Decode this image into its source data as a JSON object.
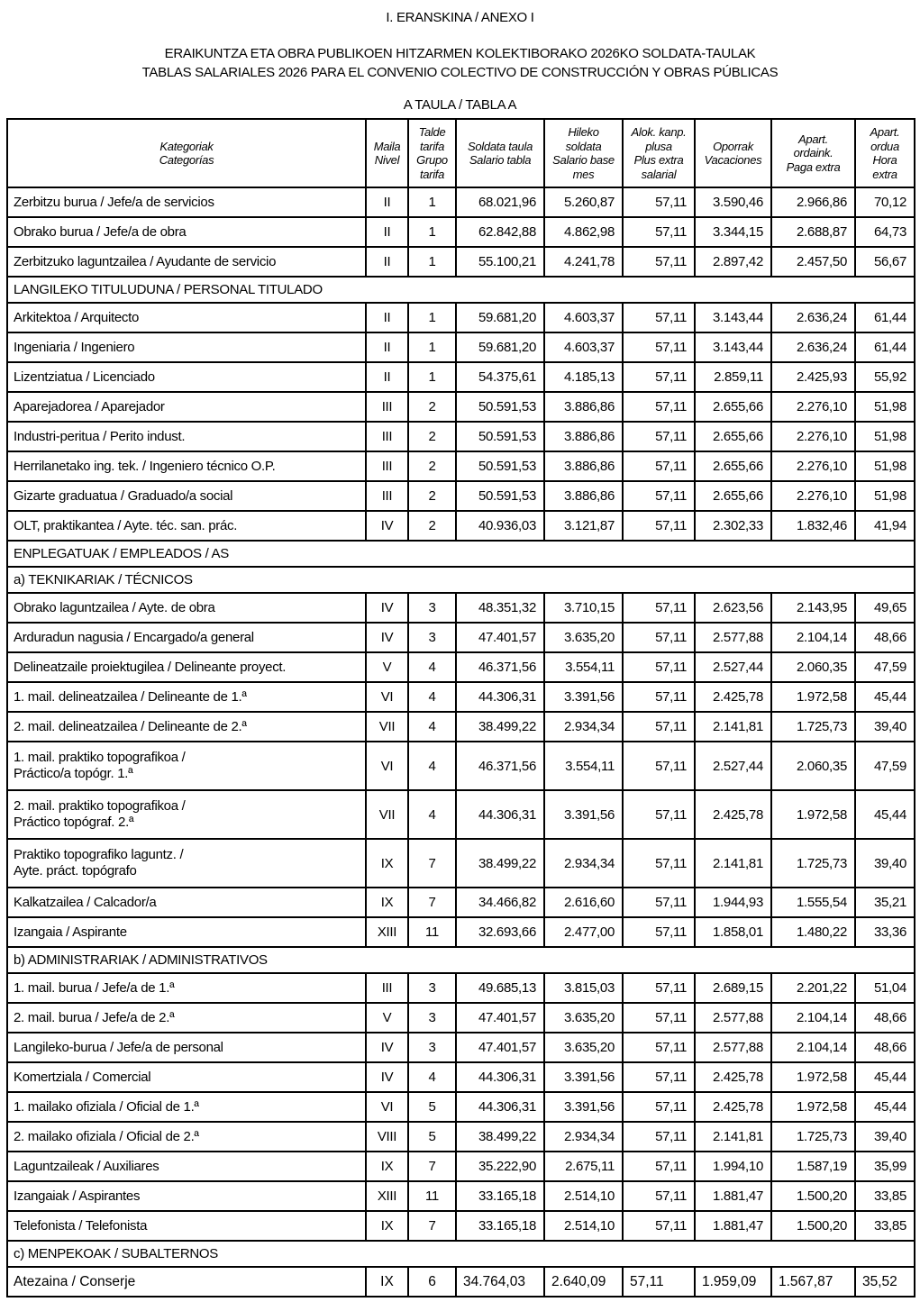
{
  "page": {
    "title": "I. ERANSKINA / ANEXO I",
    "subtitle_line1": "ERAIKUNTZA ETA OBRA PUBLIKOEN HITZARMEN KOLEKTIBORAKO 2026KO SOLDATA-TAULAK",
    "subtitle_line2": "TABLAS SALARIALES 2026 PARA EL CONVENIO COLECTIVO DE CONSTRUCCIÓN Y OBRAS PÚBLICAS",
    "table_caption": "A TAULA / TABLA A",
    "colors": {
      "text": "#000000",
      "border": "#000000",
      "background": "#ffffff"
    }
  },
  "table": {
    "headers": [
      {
        "id": "kategoriak",
        "label": "Kategoriak\nCategorías"
      },
      {
        "id": "maila",
        "label": "Maila\nNivel"
      },
      {
        "id": "talde-tarifa",
        "label": "Talde\ntarifa\nGrupo\ntarifa"
      },
      {
        "id": "soldata-taula",
        "label": "Soldata taula\nSalario tabla"
      },
      {
        "id": "hileko-soldata",
        "label": "Hileko\nsoldata\nSalario base\nmes"
      },
      {
        "id": "alok-kanp-plusa",
        "label": "Alok. kanp.\nplusa\nPlus extra\nsalarial"
      },
      {
        "id": "oporrak",
        "label": "Oporrak\nVacaciones"
      },
      {
        "id": "apart-ordaink",
        "label": "Apart.\nordaink.\nPaga extra"
      },
      {
        "id": "apart-ordua",
        "label": "Apart.\nordua\nHora\nextra"
      }
    ],
    "rows": [
      {
        "type": "data",
        "category": "Zerbitzu burua / Jefe/a de servicios",
        "values": [
          "II",
          "1",
          "68.021,96",
          "5.260,87",
          "57,11",
          "3.590,46",
          "2.966,86",
          "70,12"
        ]
      },
      {
        "type": "data",
        "category": "Obrako burua / Jefe/a de obra",
        "values": [
          "II",
          "1",
          "62.842,88",
          "4.862,98",
          "57,11",
          "3.344,15",
          "2.688,87",
          "64,73"
        ]
      },
      {
        "type": "data",
        "category": "Zerbitzuko laguntzailea / Ayudante de servicio",
        "values": [
          "II",
          "1",
          "55.100,21",
          "4.241,78",
          "57,11",
          "2.897,42",
          "2.457,50",
          "56,67"
        ]
      },
      {
        "type": "section",
        "label": "LANGILEKO TITULUDUNA / PERSONAL TITULADO"
      },
      {
        "type": "data",
        "category": "Arkitektoa / Arquitecto",
        "values": [
          "II",
          "1",
          "59.681,20",
          "4.603,37",
          "57,11",
          "3.143,44",
          "2.636,24",
          "61,44"
        ]
      },
      {
        "type": "data",
        "category": "Ingeniaria / Ingeniero",
        "values": [
          "II",
          "1",
          "59.681,20",
          "4.603,37",
          "57,11",
          "3.143,44",
          "2.636,24",
          "61,44"
        ]
      },
      {
        "type": "data",
        "category": "Lizentziatua / Licenciado",
        "values": [
          "II",
          "1",
          "54.375,61",
          "4.185,13",
          "57,11",
          "2.859,11",
          "2.425,93",
          "55,92"
        ]
      },
      {
        "type": "data",
        "category": "Aparejadorea / Aparejador",
        "values": [
          "III",
          "2",
          "50.591,53",
          "3.886,86",
          "57,11",
          "2.655,66",
          "2.276,10",
          "51,98"
        ]
      },
      {
        "type": "data",
        "category": "Industri-peritua / Perito indust.",
        "values": [
          "III",
          "2",
          "50.591,53",
          "3.886,86",
          "57,11",
          "2.655,66",
          "2.276,10",
          "51,98"
        ]
      },
      {
        "type": "data",
        "category": "Herrilanetako ing. tek. / Ingeniero técnico O.P.",
        "values": [
          "III",
          "2",
          "50.591,53",
          "3.886,86",
          "57,11",
          "2.655,66",
          "2.276,10",
          "51,98"
        ]
      },
      {
        "type": "data",
        "category": "Gizarte graduatua / Graduado/a social",
        "values": [
          "III",
          "2",
          "50.591,53",
          "3.886,86",
          "57,11",
          "2.655,66",
          "2.276,10",
          "51,98"
        ]
      },
      {
        "type": "data",
        "category": "OLT, praktikantea / Ayte. téc. san. prác.",
        "values": [
          "IV",
          "2",
          "40.936,03",
          "3.121,87",
          "57,11",
          "2.302,33",
          "1.832,46",
          "41,94"
        ]
      },
      {
        "type": "section",
        "label": "ENPLEGATUAK / EMPLEADOS / AS"
      },
      {
        "type": "section",
        "label": "a) TEKNIKARIAK / TÉCNICOS"
      },
      {
        "type": "data",
        "category": "Obrako laguntzailea / Ayte. de obra",
        "values": [
          "IV",
          "3",
          "48.351,32",
          "3.710,15",
          "57,11",
          "2.623,56",
          "2.143,95",
          "49,65"
        ]
      },
      {
        "type": "data",
        "category": "Arduradun nagusia / Encargado/a general",
        "values": [
          "IV",
          "3",
          "47.401,57",
          "3.635,20",
          "57,11",
          "2.577,88",
          "2.104,14",
          "48,66"
        ]
      },
      {
        "type": "data",
        "category": "Delineatzaile proiektugilea / Delineante proyect.",
        "values": [
          "V",
          "4",
          "46.371,56",
          "3.554,11",
          "57,11",
          "2.527,44",
          "2.060,35",
          "47,59"
        ]
      },
      {
        "type": "data",
        "category": "1. mail. delineatzailea / Delineante de 1.ª",
        "values": [
          "VI",
          "4",
          "44.306,31",
          "3.391,56",
          "57,11",
          "2.425,78",
          "1.972,58",
          "45,44"
        ]
      },
      {
        "type": "data",
        "category": "2. mail. delineatzailea / Delineante de 2.ª",
        "values": [
          "VII",
          "4",
          "38.499,22",
          "2.934,34",
          "57,11",
          "2.141,81",
          "1.725,73",
          "39,40"
        ]
      },
      {
        "type": "data",
        "category": "1. mail. praktiko topografikoa /\nPráctico/a topógr. 1.ª",
        "values": [
          "VI",
          "4",
          "46.371,56",
          "3.554,11",
          "57,11",
          "2.527,44",
          "2.060,35",
          "47,59"
        ]
      },
      {
        "type": "data",
        "category": "2. mail. praktiko topografikoa /\nPráctico topógraf. 2.ª",
        "values": [
          "VII",
          "4",
          "44.306,31",
          "3.391,56",
          "57,11",
          "2.425,78",
          "1.972,58",
          "45,44"
        ]
      },
      {
        "type": "data",
        "category": "Praktiko topografiko laguntz. /\nAyte. práct. topógrafo",
        "values": [
          "IX",
          "7",
          "38.499,22",
          "2.934,34",
          "57,11",
          "2.141,81",
          "1.725,73",
          "39,40"
        ]
      },
      {
        "type": "data",
        "category": "Kalkatzailea / Calcador/a",
        "values": [
          "IX",
          "7",
          "34.466,82",
          "2.616,60",
          "57,11",
          "1.944,93",
          "1.555,54",
          "35,21"
        ]
      },
      {
        "type": "data",
        "category": "Izangaia / Aspirante",
        "values": [
          "XIII",
          "11",
          "32.693,66",
          "2.477,00",
          "57,11",
          "1.858,01",
          "1.480,22",
          "33,36"
        ]
      },
      {
        "type": "section",
        "label": "b) ADMINISTRARIAK / ADMINISTRATIVOS"
      },
      {
        "type": "data",
        "category": "1. mail. burua / Jefe/a de 1.ª",
        "values": [
          "III",
          "3",
          "49.685,13",
          "3.815,03",
          "57,11",
          "2.689,15",
          "2.201,22",
          "51,04"
        ]
      },
      {
        "type": "data",
        "category": "2. mail. burua / Jefe/a de 2.ª",
        "values": [
          "V",
          "3",
          "47.401,57",
          "3.635,20",
          "57,11",
          "2.577,88",
          "2.104,14",
          "48,66"
        ]
      },
      {
        "type": "data",
        "category": "Langileko-burua / Jefe/a de personal",
        "values": [
          "IV",
          "3",
          "47.401,57",
          "3.635,20",
          "57,11",
          "2.577,88",
          "2.104,14",
          "48,66"
        ]
      },
      {
        "type": "data",
        "category": "Komertziala / Comercial",
        "values": [
          "IV",
          "4",
          "44.306,31",
          "3.391,56",
          "57,11",
          "2.425,78",
          "1.972,58",
          "45,44"
        ]
      },
      {
        "type": "data",
        "category": "1. mailako ofiziala / Oficial de 1.ª",
        "values": [
          "VI",
          "5",
          "44.306,31",
          "3.391,56",
          "57,11",
          "2.425,78",
          "1.972,58",
          "45,44"
        ]
      },
      {
        "type": "data",
        "category": "2. mailako ofiziala / Oficial de 2.ª",
        "values": [
          "VIII",
          "5",
          "38.499,22",
          "2.934,34",
          "57,11",
          "2.141,81",
          "1.725,73",
          "39,40"
        ]
      },
      {
        "type": "data",
        "category": "Laguntzaileak / Auxiliares",
        "values": [
          "IX",
          "7",
          "35.222,90",
          "2.675,11",
          "57,11",
          "1.994,10",
          "1.587,19",
          "35,99"
        ]
      },
      {
        "type": "data",
        "category": "Izangaiak / Aspirantes",
        "values": [
          "XIII",
          "11",
          "33.165,18",
          "2.514,10",
          "57,11",
          "1.881,47",
          "1.500,20",
          "33,85"
        ]
      },
      {
        "type": "data",
        "category": "Telefonista / Telefonista",
        "values": [
          "IX",
          "7",
          "33.165,18",
          "2.514,10",
          "57,11",
          "1.881,47",
          "1.500,20",
          "33,85"
        ]
      },
      {
        "type": "section",
        "label": "c) MENPEKOAK / SUBALTERNOS"
      },
      {
        "type": "data",
        "variant": "plain",
        "category": "Atezaina / Conserje",
        "values": [
          "IX",
          "6",
          "34.764,03",
          "2.640,09",
          "57,11",
          "1.959,09",
          "1.567,87",
          "35,52"
        ]
      }
    ]
  }
}
